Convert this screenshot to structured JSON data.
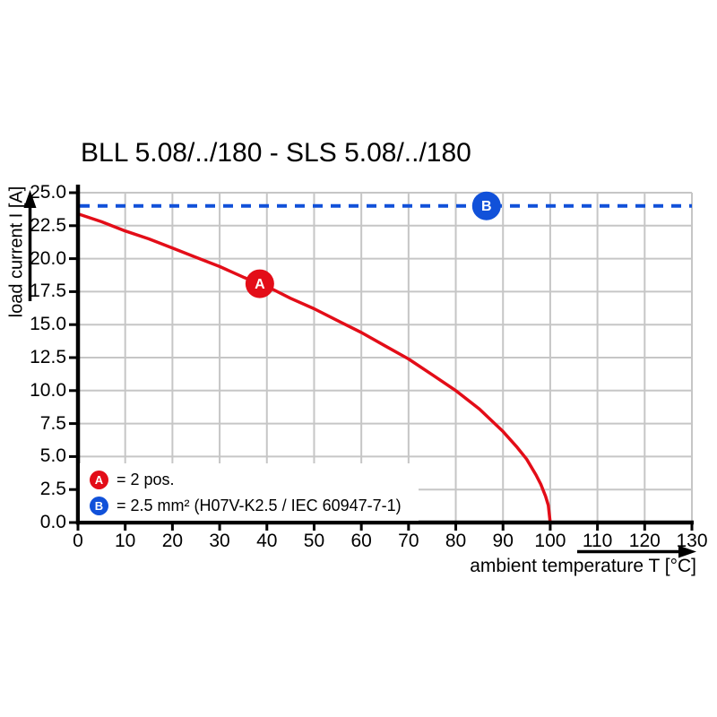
{
  "page": {
    "title": "BLL 5.08/../180 - SLS 5.08/../180"
  },
  "chart_data": {
    "type": "line",
    "title": "BLL 5.08/../180 - SLS 5.08/../180",
    "xlabel": "ambient temperature T [°C]",
    "ylabel": "load current I [A]",
    "xlim": [
      0,
      130
    ],
    "ylim": [
      0,
      25
    ],
    "x_ticks": [
      0,
      10,
      20,
      30,
      40,
      50,
      60,
      70,
      80,
      90,
      100,
      110,
      120,
      130
    ],
    "y_ticks": [
      0,
      2.5,
      5,
      7.5,
      10,
      12.5,
      15,
      17.5,
      20,
      22.5,
      25
    ],
    "y_tick_labels": [
      "0.0",
      "2.5",
      "5.0",
      "7.5",
      "10.0",
      "12.5",
      "15.0",
      "17.5",
      "20.0",
      "22.5",
      "25.0"
    ],
    "grid": true,
    "legend_position": "bottom-left",
    "colors": {
      "curve_a": "#e30d18",
      "line_b": "#1151d9",
      "grid": "#c6c6c6",
      "axis": "#000000"
    },
    "series": [
      {
        "name": "A",
        "label": "2 pos.",
        "style": "solid",
        "color": "#e30d18",
        "points": [
          [
            0,
            23.4
          ],
          [
            5,
            22.8
          ],
          [
            10,
            22.1
          ],
          [
            15,
            21.5
          ],
          [
            20,
            20.8
          ],
          [
            25,
            20.1
          ],
          [
            30,
            19.4
          ],
          [
            35,
            18.6
          ],
          [
            40,
            17.9
          ],
          [
            45,
            17.0
          ],
          [
            50,
            16.2
          ],
          [
            55,
            15.3
          ],
          [
            60,
            14.4
          ],
          [
            65,
            13.4
          ],
          [
            70,
            12.4
          ],
          [
            75,
            11.2
          ],
          [
            80,
            10.0
          ],
          [
            85,
            8.6
          ],
          [
            90,
            6.9
          ],
          [
            93,
            5.7
          ],
          [
            95,
            4.8
          ],
          [
            97,
            3.6
          ],
          [
            98,
            2.9
          ],
          [
            99,
            2.0
          ],
          [
            99.6,
            1.3
          ],
          [
            100,
            0
          ]
        ]
      },
      {
        "name": "B",
        "label": "2.5 mm² (H07V-K2.5 / IEC 60947-7-1)",
        "style": "dashed",
        "color": "#1151d9",
        "value": 24
      }
    ],
    "markers": [
      {
        "label": "A",
        "t": 38.5,
        "i": 18.1,
        "color": "#e30d18"
      },
      {
        "label": "B",
        "t": 86.5,
        "i": 24,
        "color": "#1151d9"
      }
    ],
    "legend": {
      "items": [
        {
          "symbol": "A",
          "color": "#e30d18",
          "text": "= 2 pos."
        },
        {
          "symbol": "B",
          "color": "#1151d9",
          "text": "= 2.5 mm² (H07V-K2.5 / IEC 60947-7-1)"
        }
      ]
    }
  }
}
